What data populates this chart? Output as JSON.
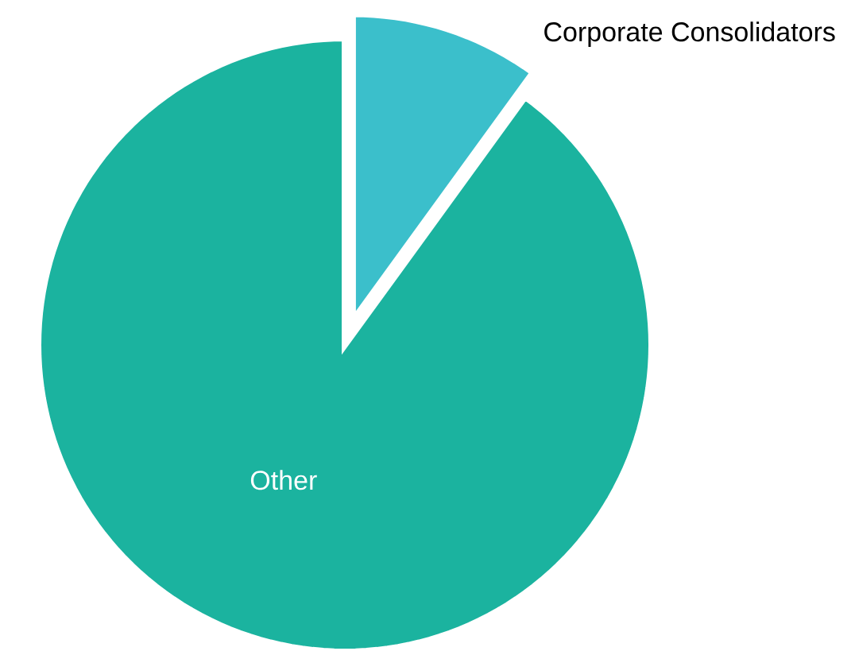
{
  "chart_data": {
    "type": "pie",
    "categories": [
      "Corporate Consolidators",
      "Other"
    ],
    "values": [
      10,
      90
    ],
    "colors": [
      "#3bbfcb",
      "#1bb39f"
    ]
  }
}
